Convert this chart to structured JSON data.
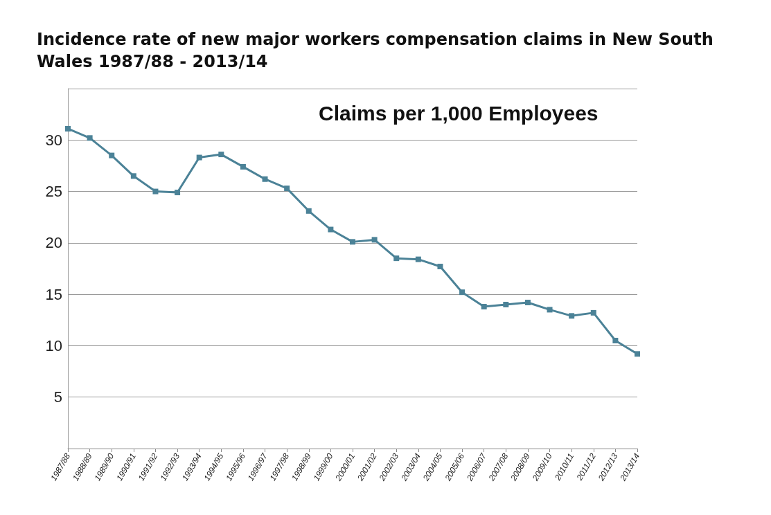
{
  "chart_data": {
    "type": "line",
    "title": "Incidence rate of new major workers compensation claims in New South Wales 1987/88 - 2013/14",
    "annotations": [
      "Claims per 1,000 Employees"
    ],
    "categories": [
      "1987/88",
      "1988/89",
      "1989/90",
      "1990/91",
      "1991/92",
      "1992/93",
      "1993/94",
      "1994/95",
      "1995/96",
      "1996/97",
      "1997/98",
      "1998/99",
      "1999/00",
      "2000/01",
      "2001/02",
      "2002/03",
      "2003/04",
      "2004/05",
      "2005/06",
      "2006/07",
      "2007/08",
      "2008/09",
      "2009/10",
      "2010/11",
      "2011/12",
      "2012/13",
      "2013/14"
    ],
    "series": [
      {
        "color": "#4b8297",
        "values": [
          31.1,
          30.2,
          28.5,
          26.5,
          25.0,
          24.9,
          28.3,
          28.6,
          27.4,
          26.2,
          25.3,
          23.1,
          21.3,
          20.1,
          20.3,
          18.5,
          18.4,
          17.7,
          15.2,
          13.8,
          14.0,
          14.2,
          13.5,
          12.9,
          13.2,
          10.5,
          9.2
        ]
      }
    ],
    "ylim": [
      0,
      35
    ],
    "yticks": [
      {
        "value": 0,
        "label": null
      },
      5,
      10,
      15,
      20,
      25,
      30,
      {
        "value": 35,
        "label": null
      }
    ],
    "grid": "y",
    "marker": "square",
    "line_style": "solid"
  }
}
